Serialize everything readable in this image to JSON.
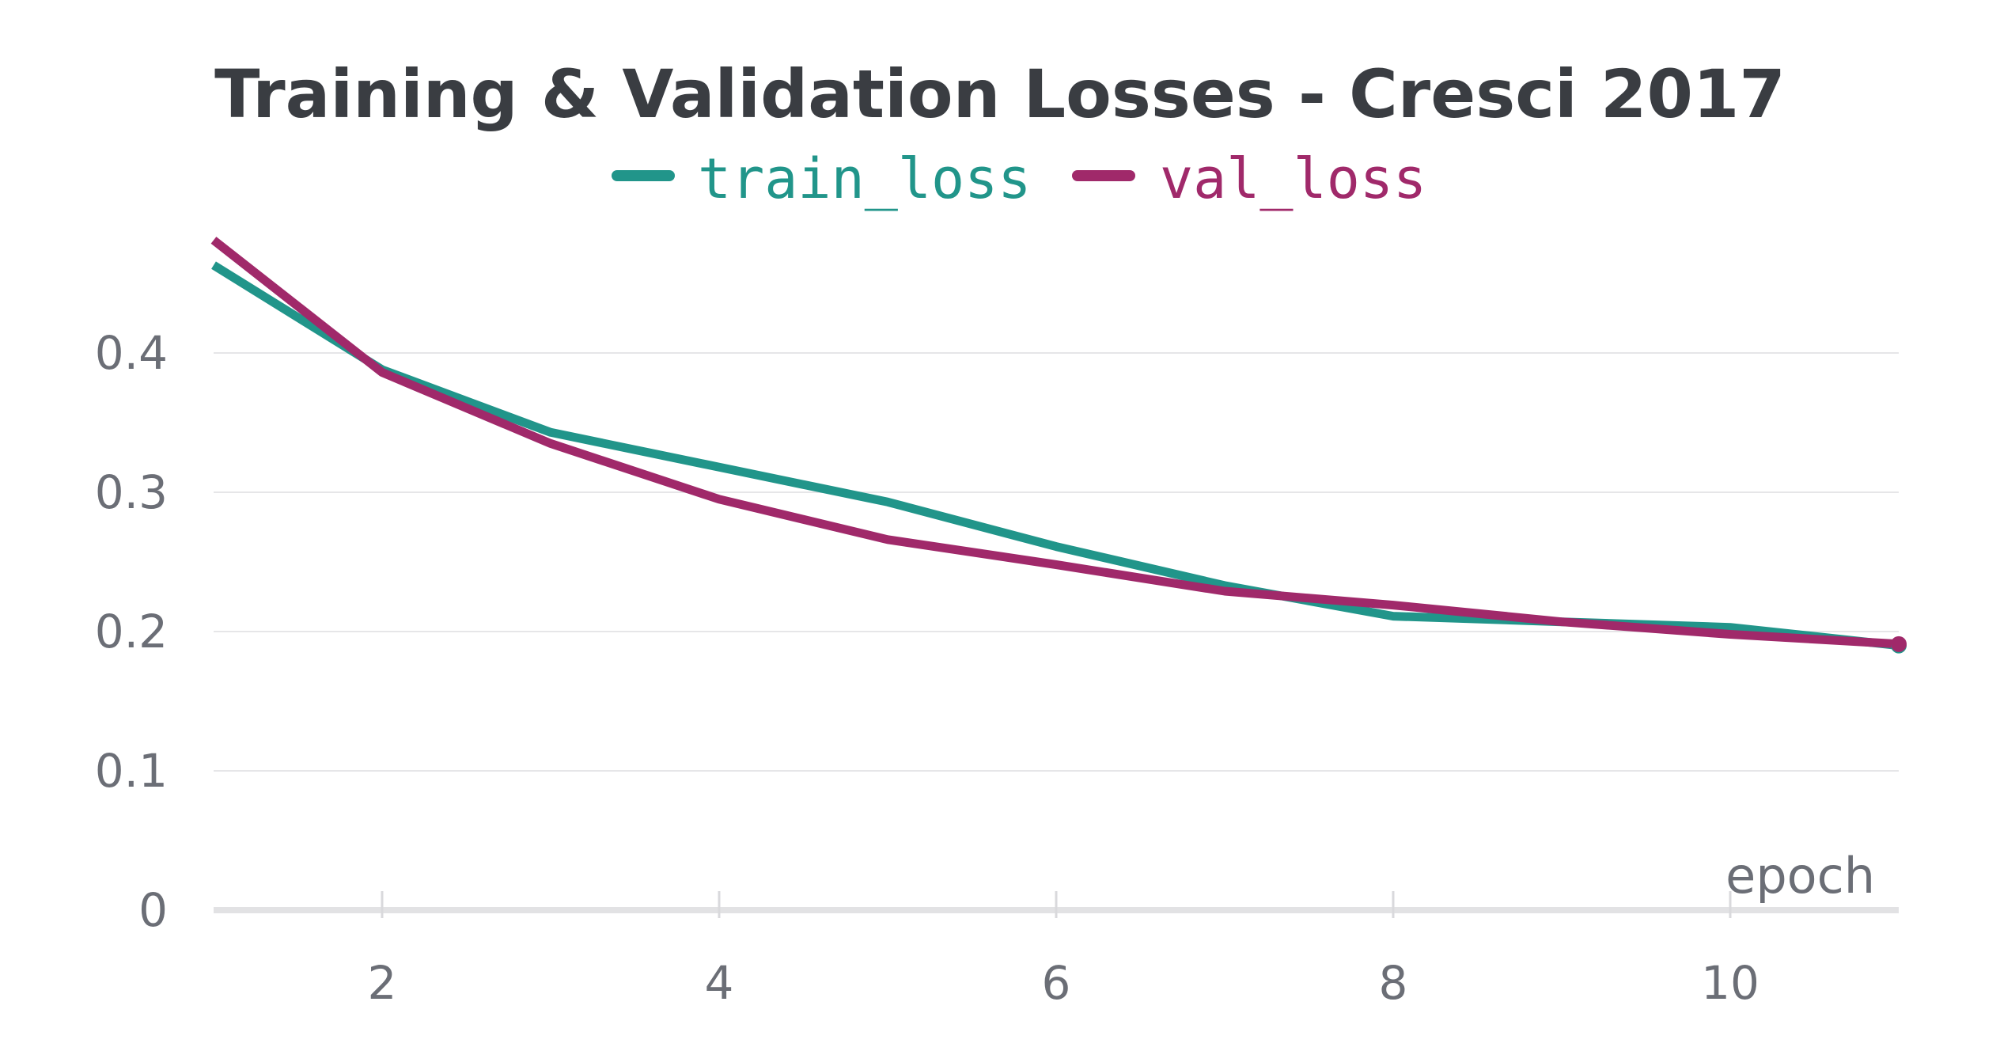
{
  "chart_data": {
    "type": "line",
    "title": "Training & Validation Losses - Cresci 2017",
    "xlabel": "epoch",
    "ylabel": "",
    "xlim": [
      1,
      11
    ],
    "ylim": [
      0,
      0.5
    ],
    "x_ticks": [
      2,
      4,
      6,
      8,
      10
    ],
    "y_ticks": [
      0,
      0.1,
      0.2,
      0.3,
      0.4
    ],
    "grid": true,
    "legend_position": "top-center",
    "series": [
      {
        "name": "train_loss",
        "color": "#21958a",
        "x": [
          1,
          2,
          3,
          4,
          5,
          6,
          7,
          8,
          9,
          10,
          11
        ],
        "y": [
          0.463,
          0.388,
          0.343,
          0.318,
          0.293,
          0.261,
          0.233,
          0.211,
          0.207,
          0.203,
          0.19
        ]
      },
      {
        "name": "val_loss",
        "color": "#a0296a",
        "x": [
          1,
          2,
          3,
          4,
          5,
          6,
          7,
          8,
          9,
          10,
          11
        ],
        "y": [
          0.481,
          0.386,
          0.335,
          0.295,
          0.266,
          0.248,
          0.229,
          0.219,
          0.207,
          0.198,
          0.191
        ]
      }
    ]
  }
}
